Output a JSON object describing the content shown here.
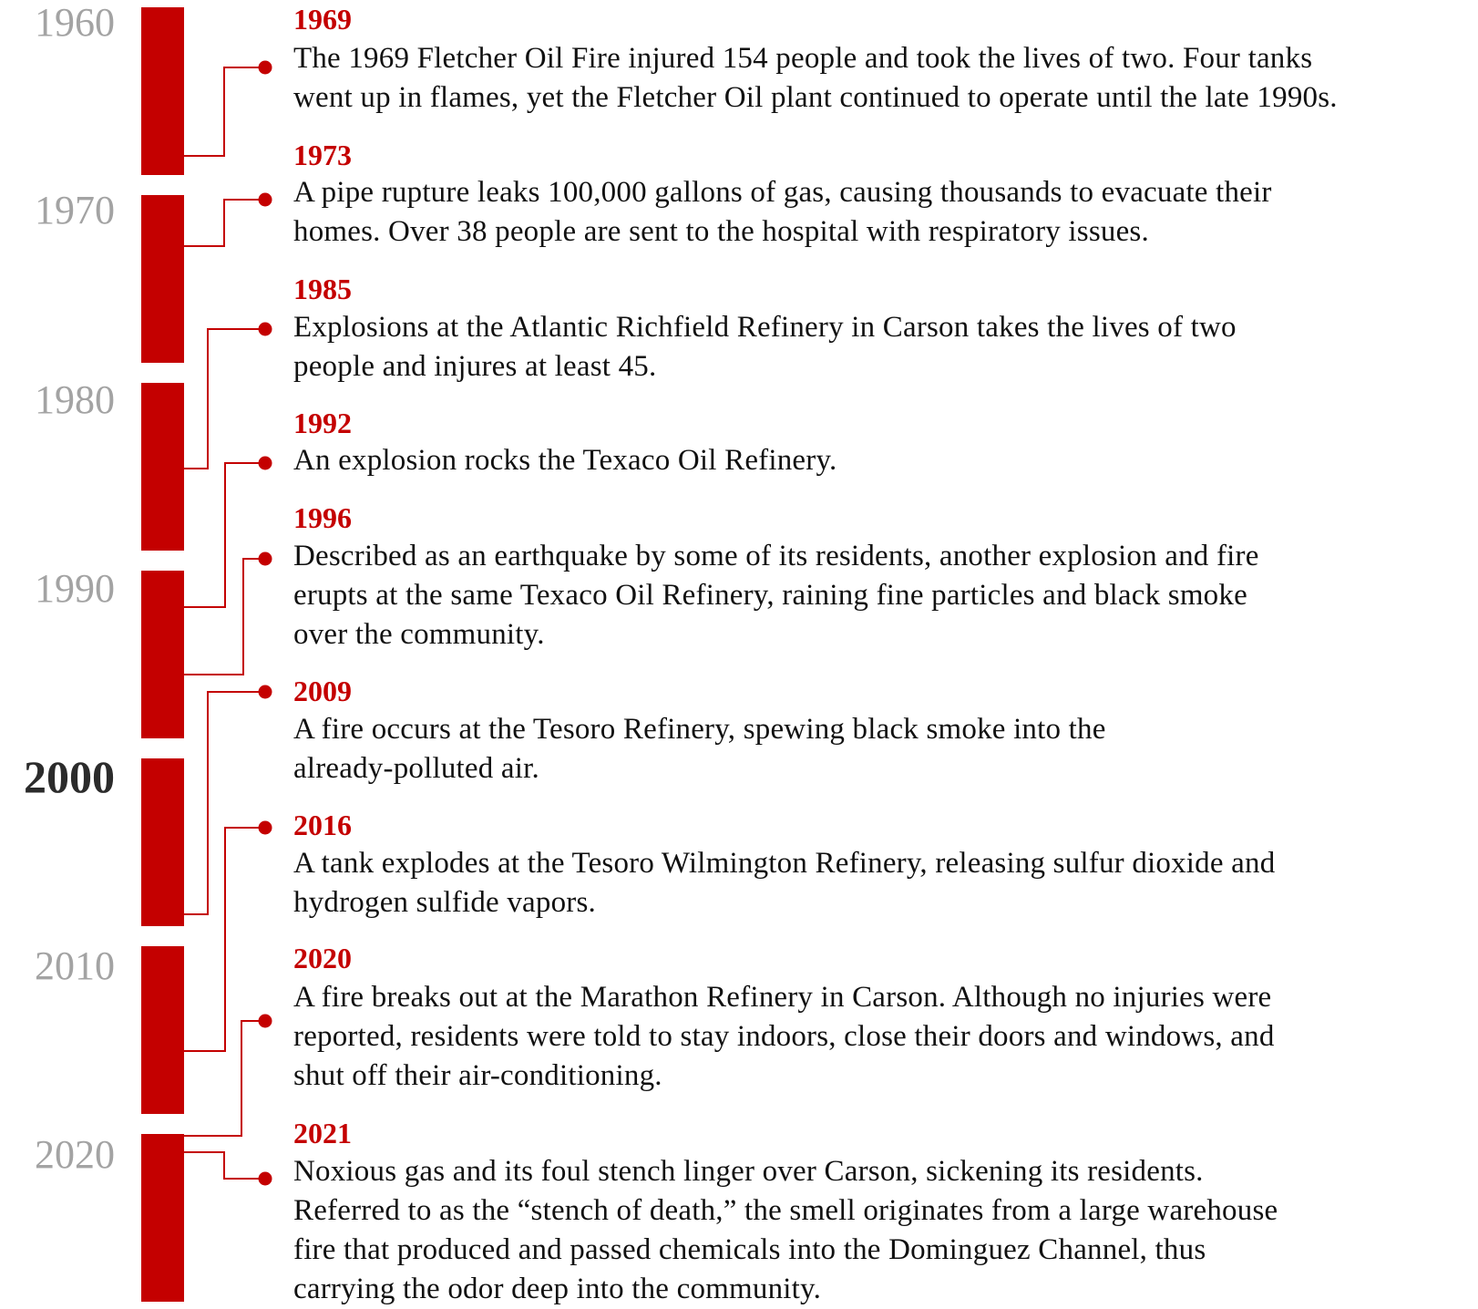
{
  "colors": {
    "accent": "#c40000",
    "decade_label": "#a3a3a3",
    "highlight_decade": "#2b2b2b",
    "text": "#111111"
  },
  "decades": [
    "1960",
    "1970",
    "1980",
    "1990",
    "2000",
    "2010",
    "2020"
  ],
  "highlighted_decade": "2000",
  "events": [
    {
      "year": "1969",
      "lines": [
        "The 1969 Fletcher Oil Fire injured 154 people and took the lives of two. Four tanks",
        "went up in flames, yet the Fletcher Oil plant continued to operate until the late 1990s."
      ]
    },
    {
      "year": "1973",
      "lines": [
        "A pipe rupture leaks 100,000 gallons of gas, causing thousands to evacuate their",
        "homes. Over 38 people are sent to the hospital with respiratory issues."
      ]
    },
    {
      "year": "1985",
      "lines": [
        "Explosions at the Atlantic Richfield Refinery in Carson takes the lives of two",
        "people and injures at least 45."
      ]
    },
    {
      "year": "1992",
      "lines": [
        "An explosion rocks the Texaco Oil Refinery."
      ]
    },
    {
      "year": "1996",
      "lines": [
        "Described as an earthquake by some of its residents, another explosion and fire",
        "erupts at the same Texaco Oil Refinery, raining fine particles and black smoke",
        "over the community."
      ]
    },
    {
      "year": "2009",
      "lines": [
        "A fire occurs at the Tesoro Refinery, spewing black smoke into the",
        "already-polluted air."
      ]
    },
    {
      "year": "2016",
      "lines": [
        "A tank explodes at the Tesoro Wilmington Refinery, releasing sulfur dioxide and",
        "hydrogen sulfide vapors."
      ]
    },
    {
      "year": "2020",
      "lines": [
        "A fire breaks out at the Marathon Refinery in Carson. Although no injuries were",
        "reported, residents were told to stay indoors, close their doors and windows, and",
        "shut off their air-conditioning."
      ]
    },
    {
      "year": "2021",
      "lines": [
        "Noxious gas and its foul stench linger over Carson, sickening its residents.",
        "Referred to as the “stench of death,” the smell originates from a large warehouse",
        "fire that produced and passed chemicals into the Dominguez Channel, thus",
        "carrying the odor deep into the community."
      ]
    }
  ]
}
